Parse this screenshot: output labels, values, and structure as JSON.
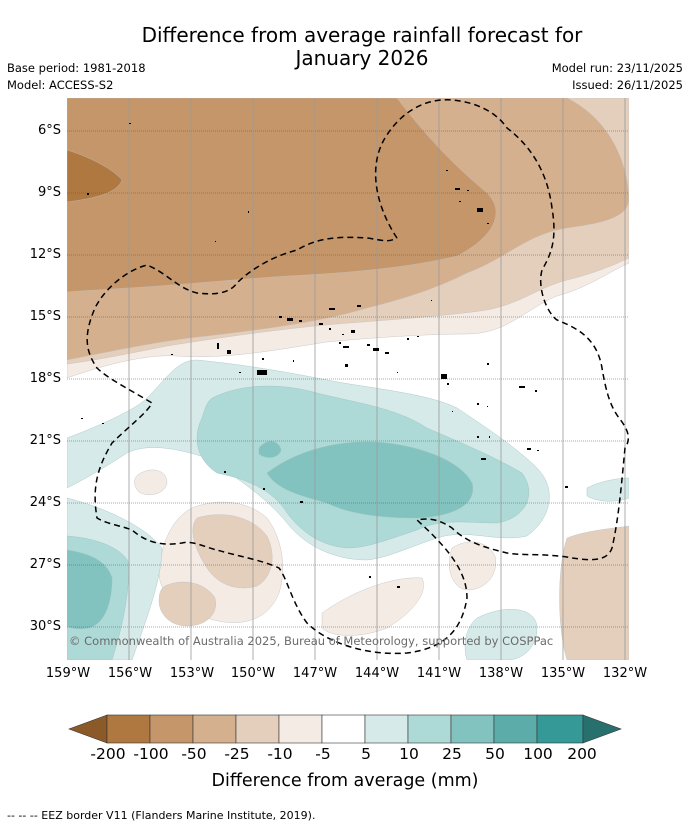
{
  "title": "Difference from average rainfall forecast for January 2026",
  "title_line1": "Difference from average rainfall forecast for",
  "title_line2": "January 2026",
  "meta": {
    "base_period": "Base period: 1981-2018",
    "model": "Model: ACCESS-S2",
    "model_run": "Model run: 23/11/2025",
    "issued": "Issued: 26/11/2025"
  },
  "axes": {
    "lat_labels": [
      "6°S",
      "9°S",
      "12°S",
      "15°S",
      "18°S",
      "21°S",
      "24°S",
      "27°S",
      "30°S"
    ],
    "lon_labels": [
      "159°W",
      "156°W",
      "153°W",
      "150°W",
      "147°W",
      "144°W",
      "141°W",
      "138°W",
      "135°W",
      "132°W"
    ]
  },
  "copyright": "© Commonwealth of Australia 2025, Bureau of Meteorology, supported by COSPPac",
  "colorbar": {
    "labels": [
      "-200",
      "-100",
      "-50",
      "-25",
      "-10",
      "-5",
      "5",
      "10",
      "25",
      "50",
      "100",
      "200"
    ],
    "colors": [
      "#8c5a28",
      "#b07841",
      "#c4966a",
      "#d4b08e",
      "#e4cfbd",
      "#f4ebe4",
      "#ffffff",
      "#d6ebe9",
      "#add9d6",
      "#82c3c0",
      "#5cadaa",
      "#359a97",
      "#27706d"
    ],
    "title": "Difference from average (mm)"
  },
  "footnote": "--  --  -- EEZ border V11 (Flanders Marine Institute, 2019)."
}
